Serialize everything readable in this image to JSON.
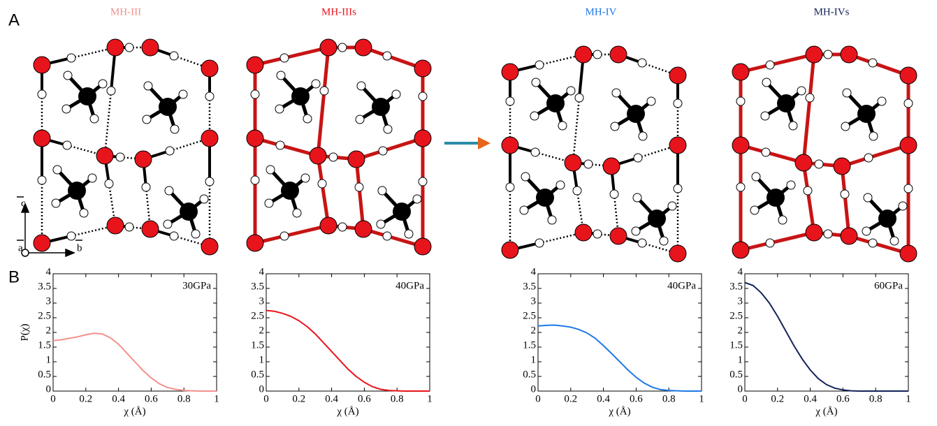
{
  "panel_labels": [
    "A",
    "B"
  ],
  "structures": [
    {
      "label": "MH-III",
      "color": "#f4908c"
    },
    {
      "label": "MH-IIIs",
      "color": "#e8141c"
    },
    {
      "label": "MH-IV",
      "color": "#1e78e6"
    },
    {
      "label": "MH-IVs",
      "color": "#14235a"
    }
  ],
  "axis_labels": [
    "c",
    "a",
    "b"
  ],
  "chart_data": [
    {
      "type": "line",
      "title": "30GPa",
      "y_label": "P(χ)",
      "x_label": "χ (Å)",
      "color": "#f4908c",
      "x": [
        0,
        0.05,
        0.1,
        0.15,
        0.2,
        0.25,
        0.3,
        0.35,
        0.4,
        0.45,
        0.5,
        0.55,
        0.6,
        0.65,
        0.7,
        0.75,
        0.8,
        0.85,
        0.9,
        0.95,
        1
      ],
      "values": [
        1.72,
        1.75,
        1.8,
        1.85,
        1.92,
        1.97,
        1.95,
        1.82,
        1.6,
        1.3,
        1.0,
        0.7,
        0.45,
        0.25,
        0.12,
        0.06,
        0.02,
        0.01,
        0,
        0,
        0
      ],
      "xlim": [
        0,
        1
      ],
      "ylim": [
        0,
        4
      ],
      "xticks": [
        0,
        0.2,
        0.4,
        0.6,
        0.8,
        1
      ],
      "yticks": [
        0,
        0.5,
        1,
        1.5,
        2,
        2.5,
        3,
        3.5,
        4
      ]
    },
    {
      "type": "line",
      "title": "40GPa",
      "x_label": "χ (Å)",
      "color": "#e8141c",
      "x": [
        0,
        0.05,
        0.1,
        0.15,
        0.2,
        0.25,
        0.3,
        0.35,
        0.4,
        0.45,
        0.5,
        0.55,
        0.6,
        0.65,
        0.7,
        0.75,
        0.8,
        0.85,
        0.9,
        0.95,
        1
      ],
      "values": [
        2.75,
        2.72,
        2.65,
        2.55,
        2.4,
        2.2,
        1.95,
        1.65,
        1.35,
        1.05,
        0.75,
        0.5,
        0.3,
        0.15,
        0.06,
        0.02,
        0.01,
        0,
        0,
        0,
        0
      ],
      "xlim": [
        0,
        1
      ],
      "ylim": [
        0,
        4
      ],
      "xticks": [
        0,
        0.2,
        0.4,
        0.6,
        0.8,
        1
      ],
      "yticks": [
        0,
        0.5,
        1,
        1.5,
        2,
        2.5,
        3,
        3.5,
        4
      ]
    },
    {
      "type": "line",
      "title": "40GPa",
      "x_label": "χ (Å)",
      "color": "#1e78e6",
      "x": [
        0,
        0.05,
        0.1,
        0.15,
        0.2,
        0.25,
        0.3,
        0.35,
        0.4,
        0.45,
        0.5,
        0.55,
        0.6,
        0.65,
        0.7,
        0.75,
        0.8,
        0.85,
        0.9,
        0.95,
        1
      ],
      "values": [
        2.22,
        2.24,
        2.25,
        2.22,
        2.18,
        2.1,
        1.98,
        1.8,
        1.55,
        1.28,
        1.0,
        0.72,
        0.47,
        0.27,
        0.13,
        0.05,
        0.02,
        0.01,
        0,
        0,
        0
      ],
      "xlim": [
        0,
        1
      ],
      "ylim": [
        0,
        4
      ],
      "xticks": [
        0,
        0.2,
        0.4,
        0.6,
        0.8,
        1
      ],
      "yticks": [
        0,
        0.5,
        1,
        1.5,
        2,
        2.5,
        3,
        3.5,
        4
      ]
    },
    {
      "type": "line",
      "title": "60GPa",
      "x_label": "χ (Å)",
      "color": "#14235a",
      "x": [
        0,
        0.05,
        0.1,
        0.15,
        0.2,
        0.25,
        0.3,
        0.35,
        0.4,
        0.45,
        0.5,
        0.55,
        0.6,
        0.65,
        0.7,
        0.75,
        0.8,
        0.85,
        0.9,
        0.95,
        1
      ],
      "values": [
        3.7,
        3.6,
        3.35,
        3.0,
        2.55,
        2.05,
        1.55,
        1.1,
        0.72,
        0.42,
        0.22,
        0.1,
        0.04,
        0.01,
        0,
        0,
        0,
        0,
        0,
        0,
        0
      ],
      "xlim": [
        0,
        1
      ],
      "ylim": [
        0,
        4
      ],
      "xticks": [
        0,
        0.2,
        0.4,
        0.6,
        0.8,
        1
      ],
      "yticks": [
        0,
        0.5,
        1,
        1.5,
        2,
        2.5,
        3,
        3.5,
        4
      ]
    }
  ]
}
